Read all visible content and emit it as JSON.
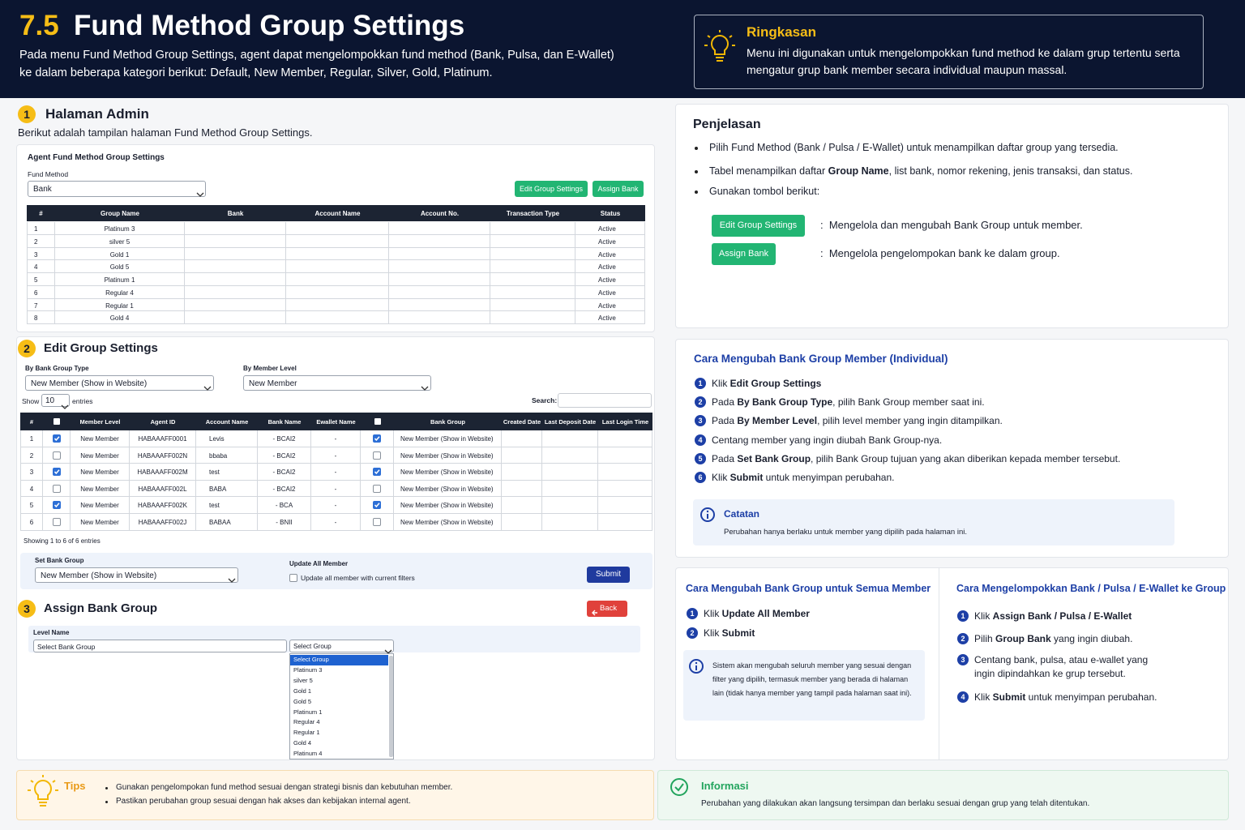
{
  "header": {
    "number": "7.5",
    "title": "Fund Method Group Settings",
    "description": "Pada menu Fund Method Group Settings, agent dapat mengelompokkan fund method (Bank, Pulsa, dan E-Wallet) ke dalam beberapa kategori berikut: Default, New Member, Regular, Silver, Gold, Platinum."
  },
  "summary": {
    "title": "Ringkasan",
    "text": "Menu ini digunakan untuk mengelompokkan fund method ke dalam grup tertentu serta mengatur grup bank member secara individual maupun massal."
  },
  "admin": {
    "number": "1",
    "title": "Halaman Admin",
    "description": "Berikut adalah tampilan halaman Fund Method Group Settings.",
    "panel_title": "Agent Fund Method Group Settings",
    "fund_method_label": "Fund Method",
    "fund_method_value": "Bank",
    "buttons": [
      "Edit Group Settings",
      "Assign Bank"
    ],
    "columns": [
      "#",
      "Group Name",
      "Bank",
      "Account Name",
      "Account No.",
      "Transaction Type",
      "Status"
    ],
    "rows": [
      [
        "1",
        "Platinum 3",
        "Active"
      ],
      [
        "2",
        "silver 5",
        "Active"
      ],
      [
        "3",
        "Gold 1",
        "Active"
      ],
      [
        "4",
        "Gold 5",
        "Active"
      ],
      [
        "5",
        "Platinum 1",
        "Active"
      ],
      [
        "6",
        "Regular 4",
        "Active"
      ],
      [
        "7",
        "Regular 1",
        "Active"
      ],
      [
        "8",
        "Gold 4",
        "Active"
      ]
    ]
  },
  "edit": {
    "number": "2",
    "title": "Edit Group Settings",
    "filter_type_label": "By Bank Group Type",
    "filter_type_value": "New Member (Show in Website)",
    "filter_level_label": "By Member Level",
    "filter_level_value": "New Member",
    "show": "Show",
    "page_size": "10",
    "entries": "entries",
    "search": "Search:",
    "columns": [
      "#",
      "Member Level",
      "Agent ID",
      "Account Name",
      "Bank Name",
      "Ewallet Name",
      "Bank Group",
      "Created Date",
      "Last Deposit Date",
      "Last Login Time"
    ],
    "rows": [
      {
        "cells": [
          "1",
          "New Member",
          "HABAAAFF0001",
          "Levis",
          "- BCAI2",
          "-",
          "New Member (Show in Website)"
        ],
        "selected": true,
        "bank_group_checked": true
      },
      {
        "cells": [
          "2",
          "New Member",
          "HABAAAFF002N",
          "bbaba",
          "- BCAI2",
          "-",
          "New Member (Show in Website)"
        ],
        "selected": false,
        "bank_group_checked": false
      },
      {
        "cells": [
          "3",
          "New Member",
          "HABAAAFF002M",
          "test",
          "- BCAI2",
          "-",
          "New Member (Show in Website)"
        ],
        "selected": true,
        "bank_group_checked": true
      },
      {
        "cells": [
          "4",
          "New Member",
          "HABAAAFF002L",
          "BABA",
          "- BCAI2",
          "-",
          "New Member (Show in Website)"
        ],
        "selected": false,
        "bank_group_checked": false
      },
      {
        "cells": [
          "5",
          "New Member",
          "HABAAAFF002K",
          "test",
          "- BCA",
          "-",
          "New Member (Show in Website)"
        ],
        "selected": true,
        "bank_group_checked": true
      },
      {
        "cells": [
          "6",
          "New Member",
          "HABAAAFF002J",
          "BABAA",
          "- BNII",
          "-",
          "New Member (Show in Website)"
        ],
        "selected": false,
        "bank_group_checked": false
      }
    ],
    "showing": "Showing 1 to 6 of 6 entries",
    "set_group_label": "Set Bank Group",
    "set_group_value": "New Member (Show in Website)",
    "update_all_label": "Update All Member",
    "update_all_option": "Update all member with current filters",
    "update_all_checked": false,
    "submit": "Submit"
  },
  "assign": {
    "number": "3",
    "title": "Assign Bank Group",
    "back": "Back",
    "level_label": "Level Name",
    "level_placeholder": "Select Bank Group",
    "select_value": "Select Group",
    "options": [
      "Select Group",
      "Platinum 3",
      "silver 5",
      "Gold 1",
      "Gold 5",
      "Platinum 1",
      "Regular 4",
      "Regular 1",
      "Gold 4",
      "Platinum 4"
    ]
  },
  "explanation": {
    "title": "Penjelasan",
    "bullets": [
      [
        "Pilih Fund Method (Bank / Pulsa / E-Wallet) untuk menampilkan daftar group yang tersedia."
      ],
      [
        "Tabel menampilkan daftar ",
        "Group Name",
        ", list bank, nomor rekening, jenis transaksi, dan status."
      ],
      [
        "Gunakan tombol berikut:"
      ]
    ],
    "buttons": [
      {
        "label": "Edit Group Settings",
        "desc": ":  Mengelola dan mengubah Bank Group untuk member."
      },
      {
        "label": "Assign Bank",
        "desc": ":  Mengelola pengelompokan bank ke dalam group."
      }
    ]
  },
  "individual": {
    "title": "Cara Mengubah Bank Group Member (Individual)",
    "steps": [
      {
        "n": "1",
        "parts": [
          "Klik ",
          "Edit Group Settings"
        ]
      },
      {
        "n": "2",
        "parts": [
          "Pada ",
          "By Bank Group Type",
          ", pilih Bank Group member saat ini."
        ]
      },
      {
        "n": "3",
        "parts": [
          "Pada ",
          "By Member Level",
          ", pilih level member yang ingin ditampilkan."
        ]
      },
      {
        "n": "4",
        "parts": [
          "Centang member yang ingin diubah Bank Group-nya."
        ]
      },
      {
        "n": "5",
        "parts": [
          "Pada ",
          "Set Bank Group",
          ", pilih Bank Group tujuan yang akan diberikan kepada member tersebut."
        ]
      },
      {
        "n": "6",
        "parts": [
          "Klik ",
          "Submit",
          " untuk menyimpan perubahan."
        ]
      }
    ],
    "note_title": "Catatan",
    "note_text": "Perubahan hanya berlaku untuk member yang dipilih pada halaman ini."
  },
  "all_members": {
    "title": "Cara Mengubah Bank Group untuk Semua Member",
    "steps": [
      {
        "n": "1",
        "parts": [
          "Klik ",
          "Update All Member"
        ]
      },
      {
        "n": "2",
        "parts": [
          "Klik ",
          "Submit"
        ]
      }
    ],
    "note_text": "Sistem akan mengubah seluruh member yang sesuai dengan filter yang dipilih, termasuk member yang berada di halaman lain (tidak hanya member yang tampil pada halaman saat ini)."
  },
  "grouping": {
    "title": "Cara Mengelompokkan Bank / Pulsa / E-Wallet ke Group",
    "steps": [
      {
        "n": "1",
        "parts": [
          "Klik ",
          "Assign Bank / Pulsa / E-Wallet"
        ]
      },
      {
        "n": "2",
        "parts": [
          "Pilih ",
          "Group Bank",
          " yang ingin diubah."
        ]
      },
      {
        "n": "3",
        "parts": [
          "Centang bank, pulsa, atau e-wallet yang ingin dipindahkan ke grup tersebut."
        ]
      },
      {
        "n": "4",
        "parts": [
          "Klik ",
          "Submit",
          " untuk menyimpan perubahan."
        ]
      }
    ]
  },
  "tips": {
    "title": "Tips",
    "items": [
      "Gunakan pengelompokan fund method sesuai dengan strategi bisnis dan kebutuhan member.",
      "Pastikan perubahan group sesuai dengan hak akses dan kebijakan internal agent."
    ]
  },
  "info": {
    "title": "Informasi",
    "text": "Perubahan yang dilakukan akan langsung tersimpan dan berlaku sesuai dengan grup yang telah ditentukan."
  }
}
